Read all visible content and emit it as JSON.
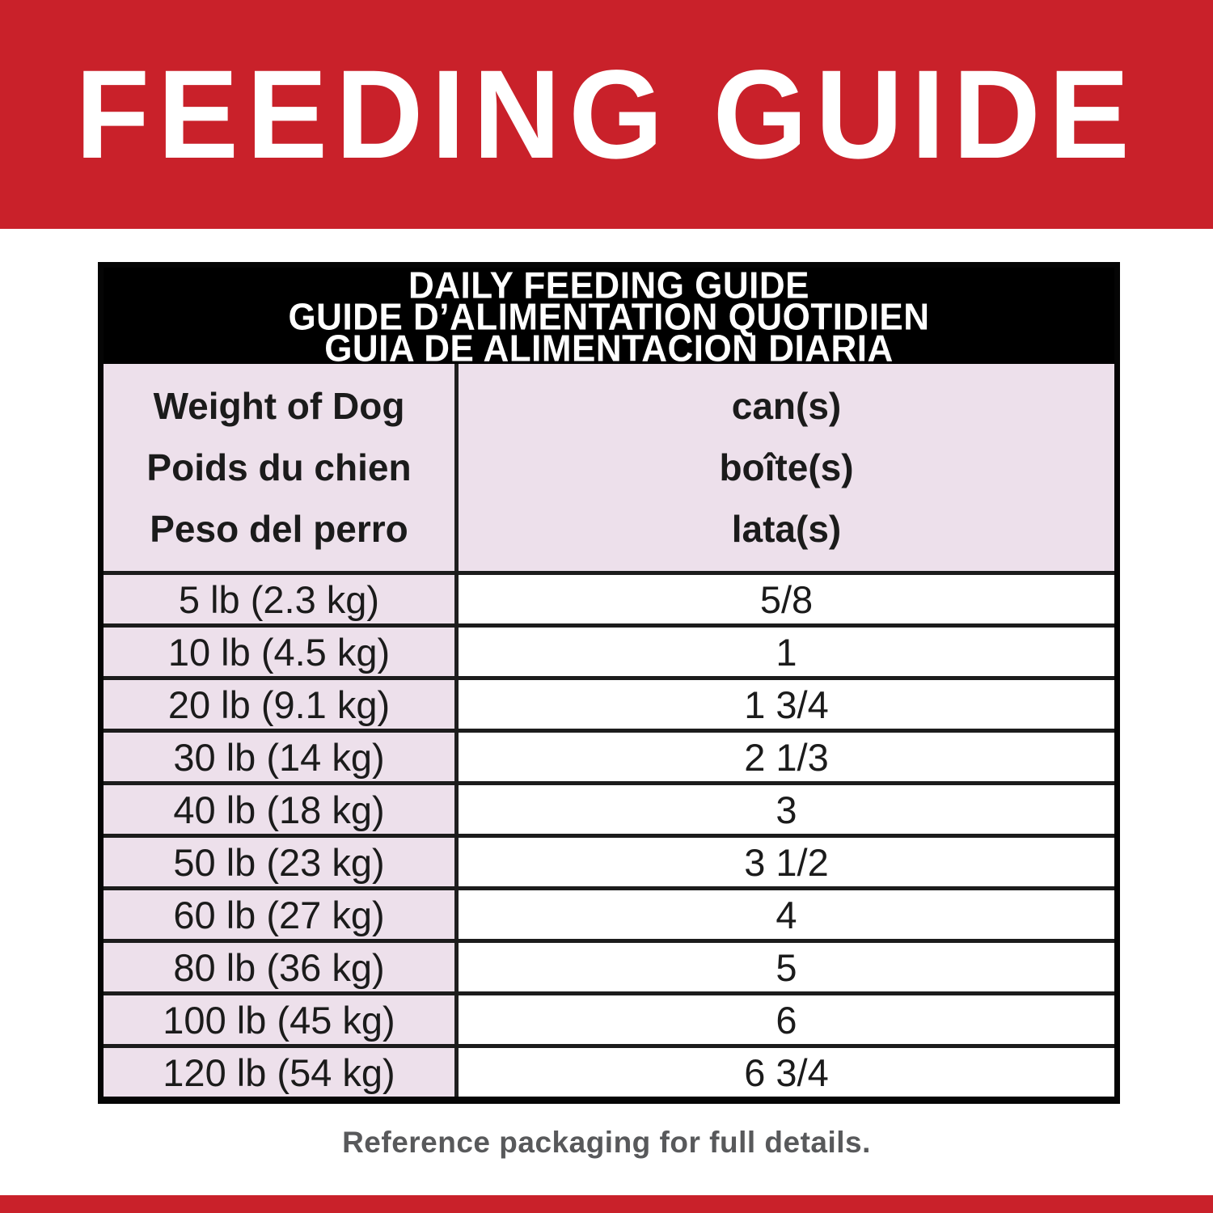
{
  "banner": {
    "title": "FEEDING GUIDE"
  },
  "colors": {
    "banner_red": "#C9212A",
    "table_title_bg": "#000000",
    "pink_cell_bg": "#EDE0EB",
    "row_line": "#1C1C1C",
    "footer_text_gray": "#58595B"
  },
  "table": {
    "title_lines": [
      "DAILY FEEDING GUIDE",
      "GUIDE D’ALIMENTATION QUOTIDIEN",
      "GUIA DE ALIMENTACION DIARIA"
    ],
    "columns": {
      "weight": {
        "lines": [
          "Weight of Dog",
          "Poids du chien",
          "Peso del perro"
        ]
      },
      "cans": {
        "lines": [
          "can(s)",
          "boîte(s)",
          "lata(s)"
        ]
      }
    },
    "rows": [
      {
        "weight": "5 lb (2.3 kg)",
        "cans": "5/8"
      },
      {
        "weight": "10 lb (4.5 kg)",
        "cans": "1"
      },
      {
        "weight": "20 lb (9.1 kg)",
        "cans": "1 3/4"
      },
      {
        "weight": "30 lb (14 kg)",
        "cans": "2 1/3"
      },
      {
        "weight": "40 lb (18 kg)",
        "cans": "3"
      },
      {
        "weight": "50 lb (23 kg)",
        "cans": "3 1/2"
      },
      {
        "weight": "60 lb (27 kg)",
        "cans": "4"
      },
      {
        "weight": "80 lb (36 kg)",
        "cans": "5"
      },
      {
        "weight": "100 lb (45 kg)",
        "cans": "6"
      },
      {
        "weight": "120 lb (54 kg)",
        "cans": "6 3/4"
      }
    ]
  },
  "footer": {
    "note": "Reference packaging for full details."
  }
}
